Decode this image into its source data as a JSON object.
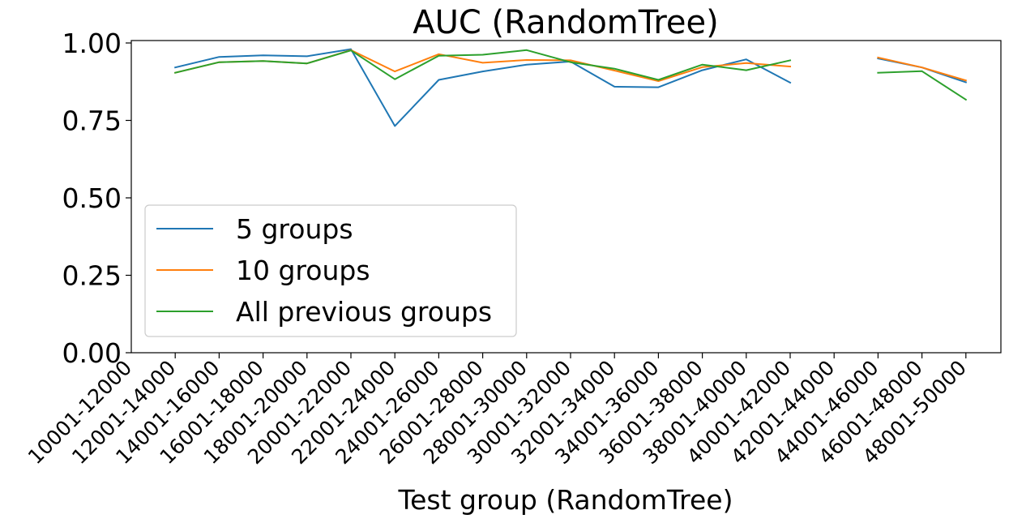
{
  "chart_data": {
    "type": "line",
    "title": "AUC (RandomTree)",
    "xlabel": "Test group (RandomTree)",
    "ylabel": "",
    "ylim": [
      0,
      1
    ],
    "yticks": [
      "0.00",
      "0.25",
      "0.50",
      "0.75",
      "1.00"
    ],
    "categories": [
      "10001-12000",
      "12001-14000",
      "14001-16000",
      "16001-18000",
      "18001-20000",
      "20001-22000",
      "22001-24000",
      "24001-26000",
      "26001-28000",
      "28001-30000",
      "30001-32000",
      "32001-34000",
      "34001-36000",
      "36001-38000",
      "38001-40000",
      "40001-42000",
      "42001-44000",
      "44001-46000",
      "46001-48000",
      "48001-50000"
    ],
    "grid": false,
    "legend": "lower-left",
    "series": [
      {
        "name": "5 groups",
        "color": "#1f77b4",
        "values": [
          null,
          0.921,
          0.955,
          0.96,
          0.957,
          0.98,
          0.732,
          0.881,
          0.908,
          0.93,
          0.94,
          0.859,
          0.857,
          0.912,
          0.947,
          0.872,
          null,
          0.95,
          0.921,
          0.873
        ]
      },
      {
        "name": "10 groups",
        "color": "#ff7f0e",
        "values": [
          null,
          0.904,
          0.938,
          0.942,
          0.934,
          0.977,
          0.908,
          0.964,
          0.936,
          0.945,
          0.944,
          0.911,
          0.877,
          0.922,
          0.935,
          0.924,
          null,
          0.953,
          0.921,
          0.879
        ]
      },
      {
        "name": "All previous groups",
        "color": "#2ca02c",
        "values": [
          null,
          0.904,
          0.938,
          0.942,
          0.934,
          0.976,
          0.883,
          0.959,
          0.962,
          0.977,
          0.938,
          0.917,
          0.881,
          0.93,
          0.912,
          0.944,
          null,
          0.904,
          0.909,
          0.817
        ]
      }
    ]
  }
}
